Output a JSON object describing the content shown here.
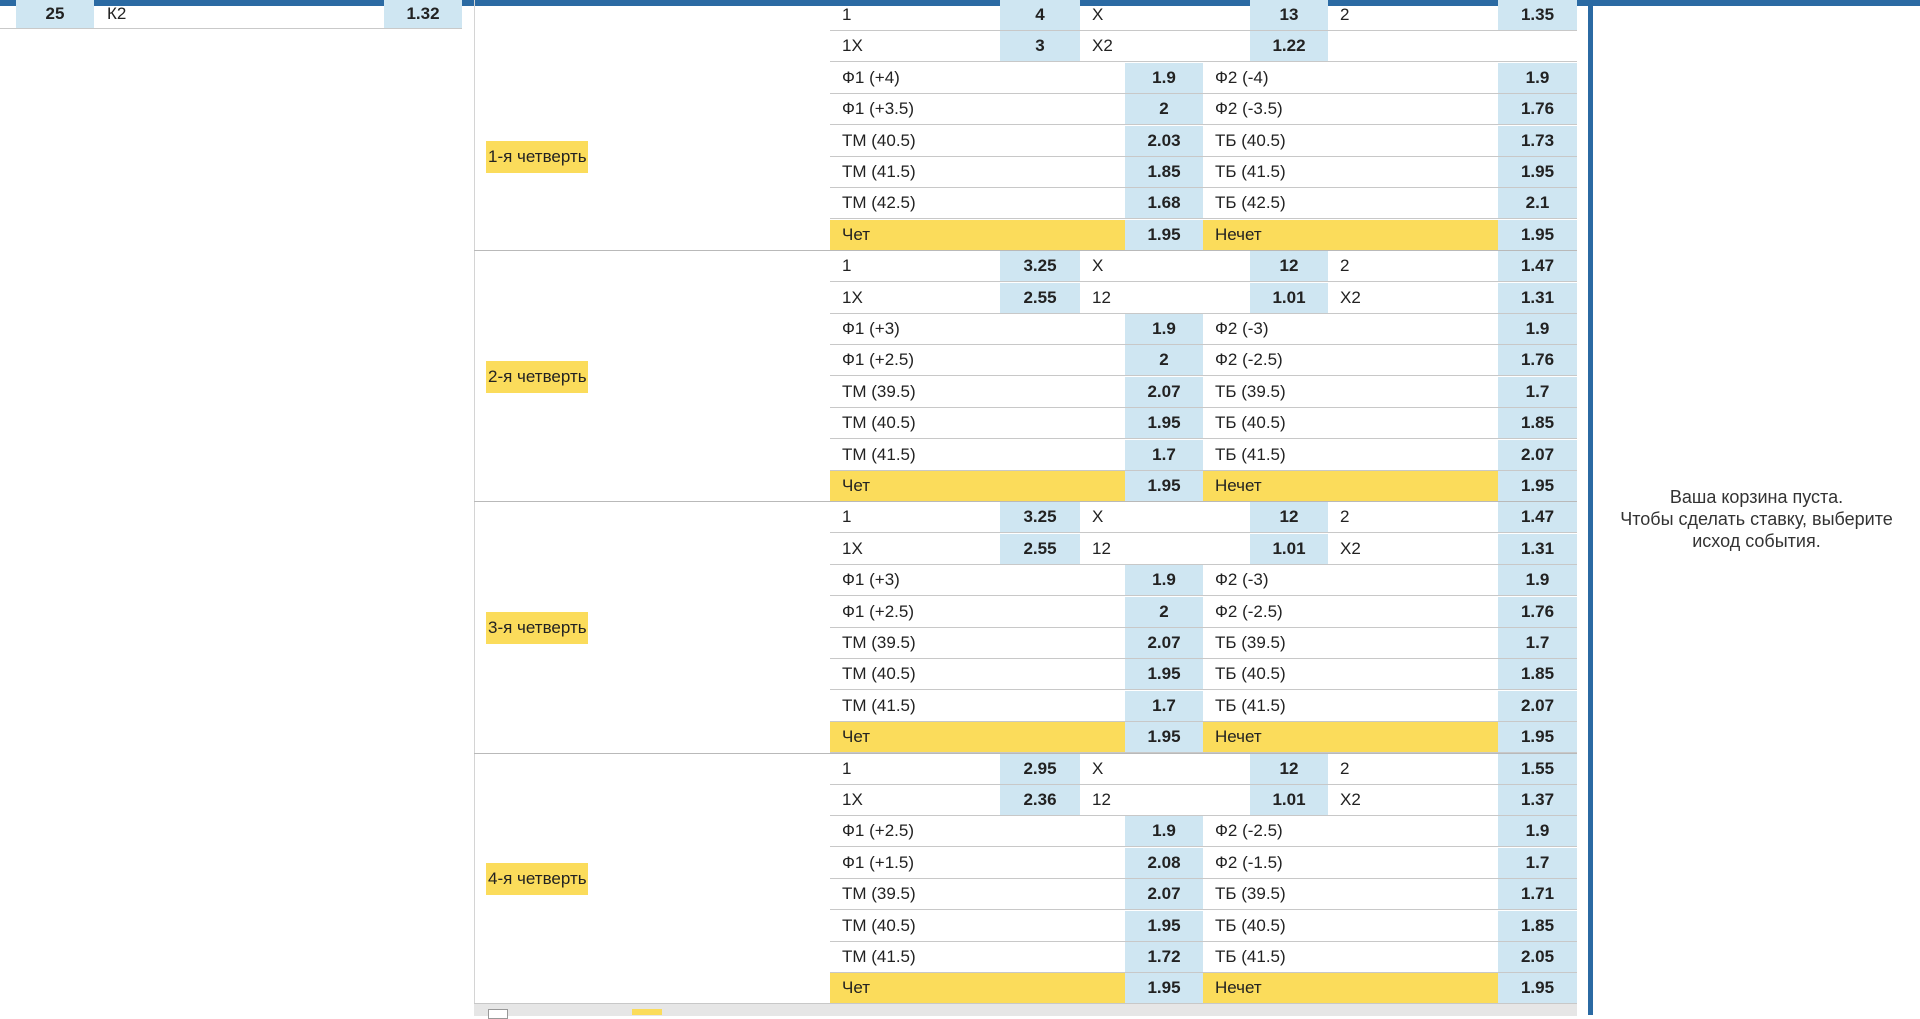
{
  "top_left_row": {
    "num": "25",
    "label": "К2",
    "odd": "1.32"
  },
  "cart": {
    "line1": "Ваша корзина пуста.",
    "line2": "Чтобы сделать ставку, выберите",
    "line3": "исход события."
  },
  "top_partial": {
    "row1": {
      "c1": "1",
      "v1": "4",
      "c2": "Х",
      "v2": "13",
      "c3": "2",
      "v3": "1.35"
    },
    "row2": {
      "c1": "1Х",
      "v1": "3",
      "c2": "Х2",
      "v2": "1.22"
    }
  },
  "quarters": [
    {
      "label": "1-я четверть",
      "row1": null,
      "row2": null,
      "pairs": [
        [
          "Ф1 (+4)",
          "1.9",
          "Ф2 (-4)",
          "1.9"
        ],
        [
          "Ф1 (+3.5)",
          "2",
          "Ф2 (-3.5)",
          "1.76"
        ],
        [
          "ТМ (40.5)",
          "2.03",
          "ТБ (40.5)",
          "1.73"
        ],
        [
          "ТМ (41.5)",
          "1.85",
          "ТБ (41.5)",
          "1.95"
        ],
        [
          "ТМ (42.5)",
          "1.68",
          "ТБ (42.5)",
          "2.1"
        ]
      ],
      "parity": [
        "Чет",
        "1.95",
        "Нечет",
        "1.95"
      ]
    },
    {
      "label": "2-я четверть",
      "row1": [
        "1",
        "3.25",
        "Х",
        "12",
        "2",
        "1.47"
      ],
      "row2": [
        "1Х",
        "2.55",
        "12",
        "1.01",
        "Х2",
        "1.31"
      ],
      "pairs": [
        [
          "Ф1 (+3)",
          "1.9",
          "Ф2 (-3)",
          "1.9"
        ],
        [
          "Ф1 (+2.5)",
          "2",
          "Ф2 (-2.5)",
          "1.76"
        ],
        [
          "ТМ (39.5)",
          "2.07",
          "ТБ (39.5)",
          "1.7"
        ],
        [
          "ТМ (40.5)",
          "1.95",
          "ТБ (40.5)",
          "1.85"
        ],
        [
          "ТМ (41.5)",
          "1.7",
          "ТБ (41.5)",
          "2.07"
        ]
      ],
      "parity": [
        "Чет",
        "1.95",
        "Нечет",
        "1.95"
      ]
    },
    {
      "label": "3-я четверть",
      "row1": [
        "1",
        "3.25",
        "Х",
        "12",
        "2",
        "1.47"
      ],
      "row2": [
        "1Х",
        "2.55",
        "12",
        "1.01",
        "Х2",
        "1.31"
      ],
      "pairs": [
        [
          "Ф1 (+3)",
          "1.9",
          "Ф2 (-3)",
          "1.9"
        ],
        [
          "Ф1 (+2.5)",
          "2",
          "Ф2 (-2.5)",
          "1.76"
        ],
        [
          "ТМ (39.5)",
          "2.07",
          "ТБ (39.5)",
          "1.7"
        ],
        [
          "ТМ (40.5)",
          "1.95",
          "ТБ (40.5)",
          "1.85"
        ],
        [
          "ТМ (41.5)",
          "1.7",
          "ТБ (41.5)",
          "2.07"
        ]
      ],
      "parity": [
        "Чет",
        "1.95",
        "Нечет",
        "1.95"
      ]
    },
    {
      "label": "4-я четверть",
      "row1": [
        "1",
        "2.95",
        "Х",
        "12",
        "2",
        "1.55"
      ],
      "row2": [
        "1Х",
        "2.36",
        "12",
        "1.01",
        "Х2",
        "1.37"
      ],
      "pairs": [
        [
          "Ф1 (+2.5)",
          "1.9",
          "Ф2 (-2.5)",
          "1.9"
        ],
        [
          "Ф1 (+1.5)",
          "2.08",
          "Ф2 (-1.5)",
          "1.7"
        ],
        [
          "ТМ (39.5)",
          "2.07",
          "ТБ (39.5)",
          "1.71"
        ],
        [
          "ТМ (40.5)",
          "1.95",
          "ТБ (40.5)",
          "1.85"
        ],
        [
          "ТМ (41.5)",
          "1.72",
          "ТБ (41.5)",
          "2.05"
        ]
      ],
      "parity": [
        "Чет",
        "1.95",
        "Нечет",
        "1.95"
      ]
    }
  ]
}
